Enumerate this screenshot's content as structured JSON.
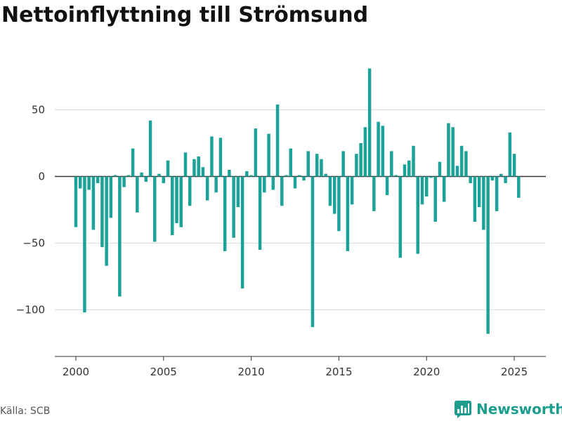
{
  "title": "Nettoinflyttning till Strömsund",
  "source": "Källa: SCB",
  "brand": {
    "name": "Newsworthy",
    "icon": "newsworthy-logo-icon"
  },
  "colors": {
    "bar": "#1ca399",
    "zero_line": "#333333",
    "grid": "#dcdcdc"
  },
  "chart_data": {
    "type": "bar",
    "title": "Nettoinflyttning till Strömsund",
    "xlabel": "",
    "ylabel": "",
    "ylim": [
      -135,
      85
    ],
    "xlim": [
      1998.8,
      2026.8
    ],
    "grid": true,
    "y_ticks": [
      50,
      0,
      -50,
      -100
    ],
    "y_tick_labels": [
      "50",
      "0",
      "−50",
      "−100"
    ],
    "x_ticks": [
      2000,
      2005,
      2010,
      2015,
      2020,
      2025
    ],
    "x_tick_labels": [
      "2000",
      "2005",
      "2010",
      "2015",
      "2020",
      "2025"
    ],
    "frequency": "quarterly",
    "x": [
      2000.0,
      2000.25,
      2000.5,
      2000.75,
      2001.0,
      2001.25,
      2001.5,
      2001.75,
      2002.0,
      2002.25,
      2002.5,
      2002.75,
      2003.0,
      2003.25,
      2003.5,
      2003.75,
      2004.0,
      2004.25,
      2004.5,
      2004.75,
      2005.0,
      2005.25,
      2005.5,
      2005.75,
      2006.0,
      2006.25,
      2006.5,
      2006.75,
      2007.0,
      2007.25,
      2007.5,
      2007.75,
      2008.0,
      2008.25,
      2008.5,
      2008.75,
      2009.0,
      2009.25,
      2009.5,
      2009.75,
      2010.0,
      2010.25,
      2010.5,
      2010.75,
      2011.0,
      2011.25,
      2011.5,
      2011.75,
      2012.0,
      2012.25,
      2012.5,
      2012.75,
      2013.0,
      2013.25,
      2013.5,
      2013.75,
      2014.0,
      2014.25,
      2014.5,
      2014.75,
      2015.0,
      2015.25,
      2015.5,
      2015.75,
      2016.0,
      2016.25,
      2016.5,
      2016.75,
      2017.0,
      2017.25,
      2017.5,
      2017.75,
      2018.0,
      2018.25,
      2018.5,
      2018.75,
      2019.0,
      2019.25,
      2019.5,
      2019.75,
      2020.0,
      2020.25,
      2020.5,
      2020.75,
      2021.0,
      2021.25,
      2021.5,
      2021.75,
      2022.0,
      2022.25,
      2022.5,
      2022.75,
      2023.0,
      2023.25,
      2023.5,
      2023.75,
      2024.0,
      2024.25,
      2024.5,
      2024.75,
      2025.0,
      2025.25
    ],
    "values": [
      -38,
      -9,
      -102,
      -10,
      -40,
      -5,
      -53,
      -67,
      -31,
      1,
      -90,
      -8,
      1,
      21,
      -27,
      3,
      -4,
      42,
      -49,
      2,
      -5,
      12,
      -44,
      -35,
      -38,
      18,
      -22,
      13,
      15,
      7,
      -18,
      30,
      -12,
      29,
      -56,
      5,
      -46,
      -23,
      -84,
      4,
      1,
      36,
      -55,
      -12,
      32,
      -10,
      54,
      -22,
      1,
      21,
      -9,
      1,
      -3,
      19,
      -113,
      17,
      13,
      2,
      -22,
      -28,
      -41,
      19,
      -56,
      -21,
      17,
      25,
      37,
      81,
      -26,
      41,
      38,
      -14,
      19,
      1,
      -61,
      9,
      12,
      23,
      -58,
      -21,
      -15,
      -1,
      -34,
      11,
      -19,
      40,
      37,
      8,
      23,
      19,
      -5,
      -34,
      -23,
      -40,
      -118,
      -3,
      -26,
      2,
      -5,
      33,
      17,
      -16
    ]
  }
}
